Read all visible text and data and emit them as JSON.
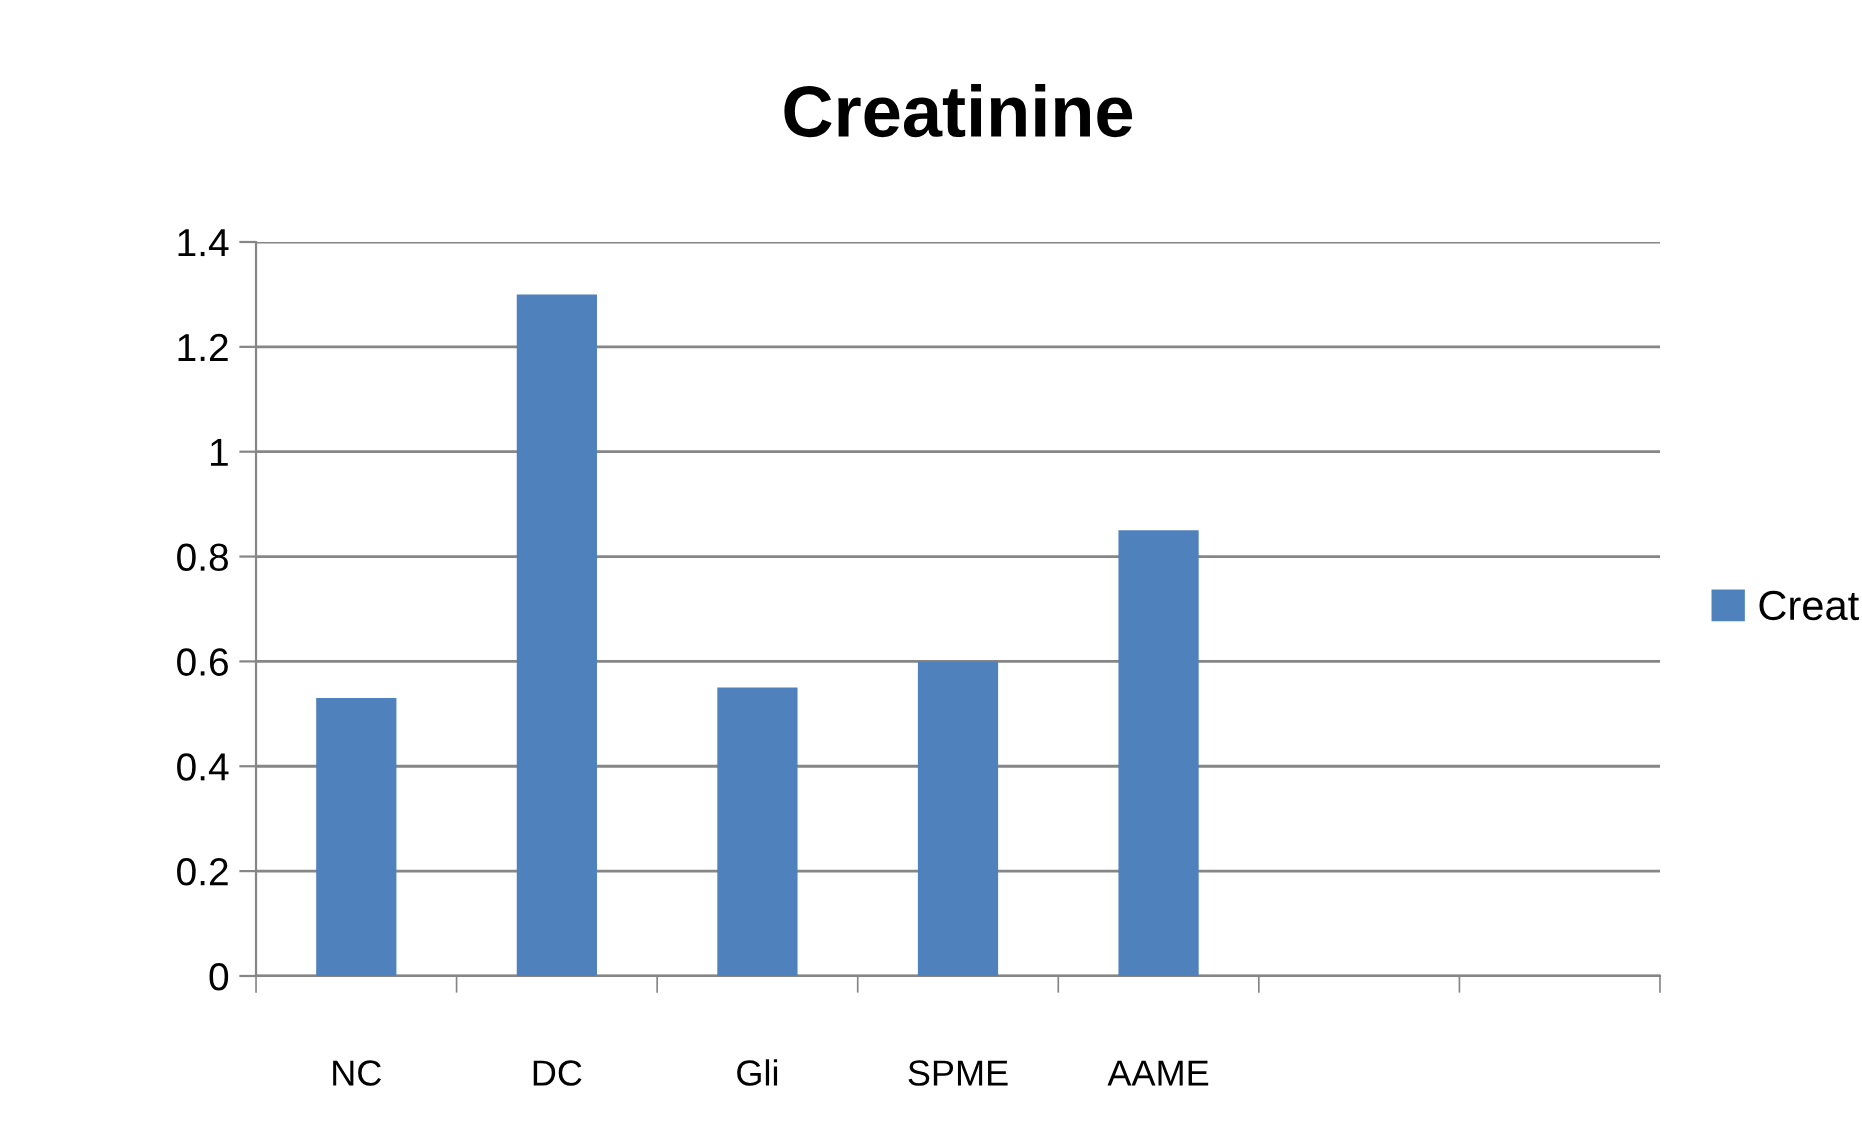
{
  "chart_data": {
    "type": "bar",
    "title": "Creatinine",
    "categories": [
      "NC",
      "DC",
      "Gli",
      "SPME",
      "AAME",
      null,
      null
    ],
    "series": [
      {
        "name": "Creat",
        "color": "#4f81bd",
        "values": [
          0.53,
          1.3,
          0.55,
          0.6,
          0.85,
          null,
          null
        ]
      }
    ],
    "ylim": [
      0,
      1.4
    ],
    "yticks": [
      0,
      0.2,
      0.4,
      0.6,
      0.8,
      1,
      1.2,
      1.4
    ],
    "grid": "y",
    "legend": "right"
  }
}
